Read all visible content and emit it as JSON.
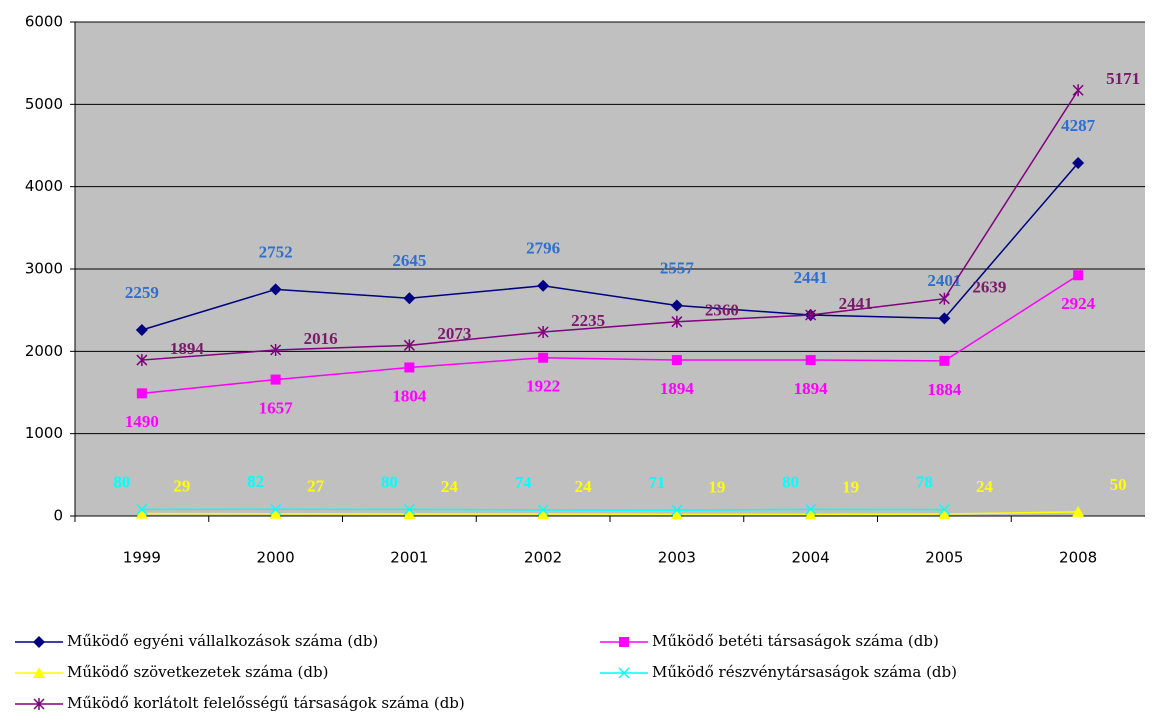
{
  "chart_data": {
    "type": "line",
    "categories": [
      "1999",
      "2000",
      "2001",
      "2002",
      "2003",
      "2004",
      "2005",
      "2008"
    ],
    "series": [
      {
        "name": "Működő egyéni vállalkozások száma (db)",
        "color": "#000080",
        "label_color": "#2f6fd0",
        "marker": "diamond",
        "values": [
          2259,
          2752,
          2645,
          2796,
          2557,
          2441,
          2401,
          4287
        ]
      },
      {
        "name": "Működő betéti társaságok száma (db)",
        "color": "#ff00ff",
        "label_color": "#ff00ff",
        "marker": "square",
        "values": [
          1490,
          1657,
          1804,
          1922,
          1894,
          1894,
          1884,
          2924
        ]
      },
      {
        "name": "Működő szövetkezetek száma (db)",
        "color": "#ffff00",
        "label_color": "#ffff00",
        "marker": "triangle",
        "values": [
          29,
          27,
          24,
          24,
          19,
          19,
          24,
          50
        ]
      },
      {
        "name": "Működő részvénytársaságok száma (db)",
        "color": "#00ffff",
        "label_color": "#00ffff",
        "marker": "x",
        "values": [
          80,
          82,
          80,
          74,
          71,
          80,
          78,
          null
        ]
      },
      {
        "name": "Működő korlátolt felelősségű társaságok száma (db)",
        "color": "#800080",
        "label_color": "#7b1a6a",
        "marker": "star",
        "values": [
          1894,
          2016,
          2073,
          2235,
          2360,
          2441,
          2639,
          5171
        ]
      }
    ],
    "ylim": [
      0,
      6000
    ],
    "yticks": [
      0,
      1000,
      2000,
      3000,
      4000,
      5000,
      6000
    ],
    "grid": true
  }
}
